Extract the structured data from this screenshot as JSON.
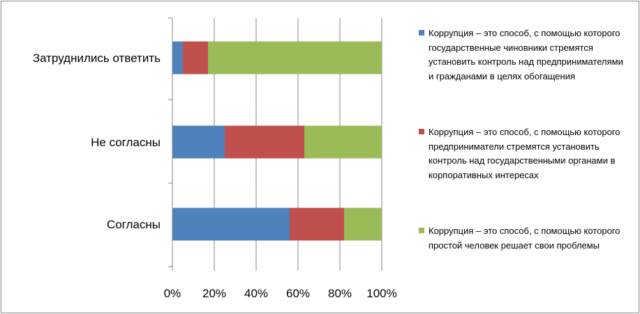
{
  "chart_data": {
    "type": "bar",
    "orientation": "horizontal",
    "stacking": "percent",
    "categories": [
      "Затруднились ответить",
      "Не согласны",
      "Согласны"
    ],
    "series": [
      {
        "name": "Коррупция – это способ, с помощью которого государственные чиновники стремятся установить контроль над предпринимателями и гражданами в целях обогащения",
        "color": "#4F81BD",
        "values": [
          5,
          25,
          56
        ]
      },
      {
        "name": "Коррупция – это способ, с помощью которого предприниматели стремятся установить контроль над государственными органами в корпоративных интересах",
        "color": "#C0504D",
        "values": [
          12,
          38,
          26
        ]
      },
      {
        "name": "Коррупция – это способ, с помощью которого простой человек решает свои проблемы",
        "color": "#9BBB59",
        "values": [
          83,
          37,
          18
        ]
      }
    ],
    "x_ticks": [
      "0%",
      "20%",
      "40%",
      "60%",
      "80%",
      "100%"
    ],
    "xlim": [
      0,
      100
    ],
    "grid": true,
    "legend_position": "right"
  }
}
